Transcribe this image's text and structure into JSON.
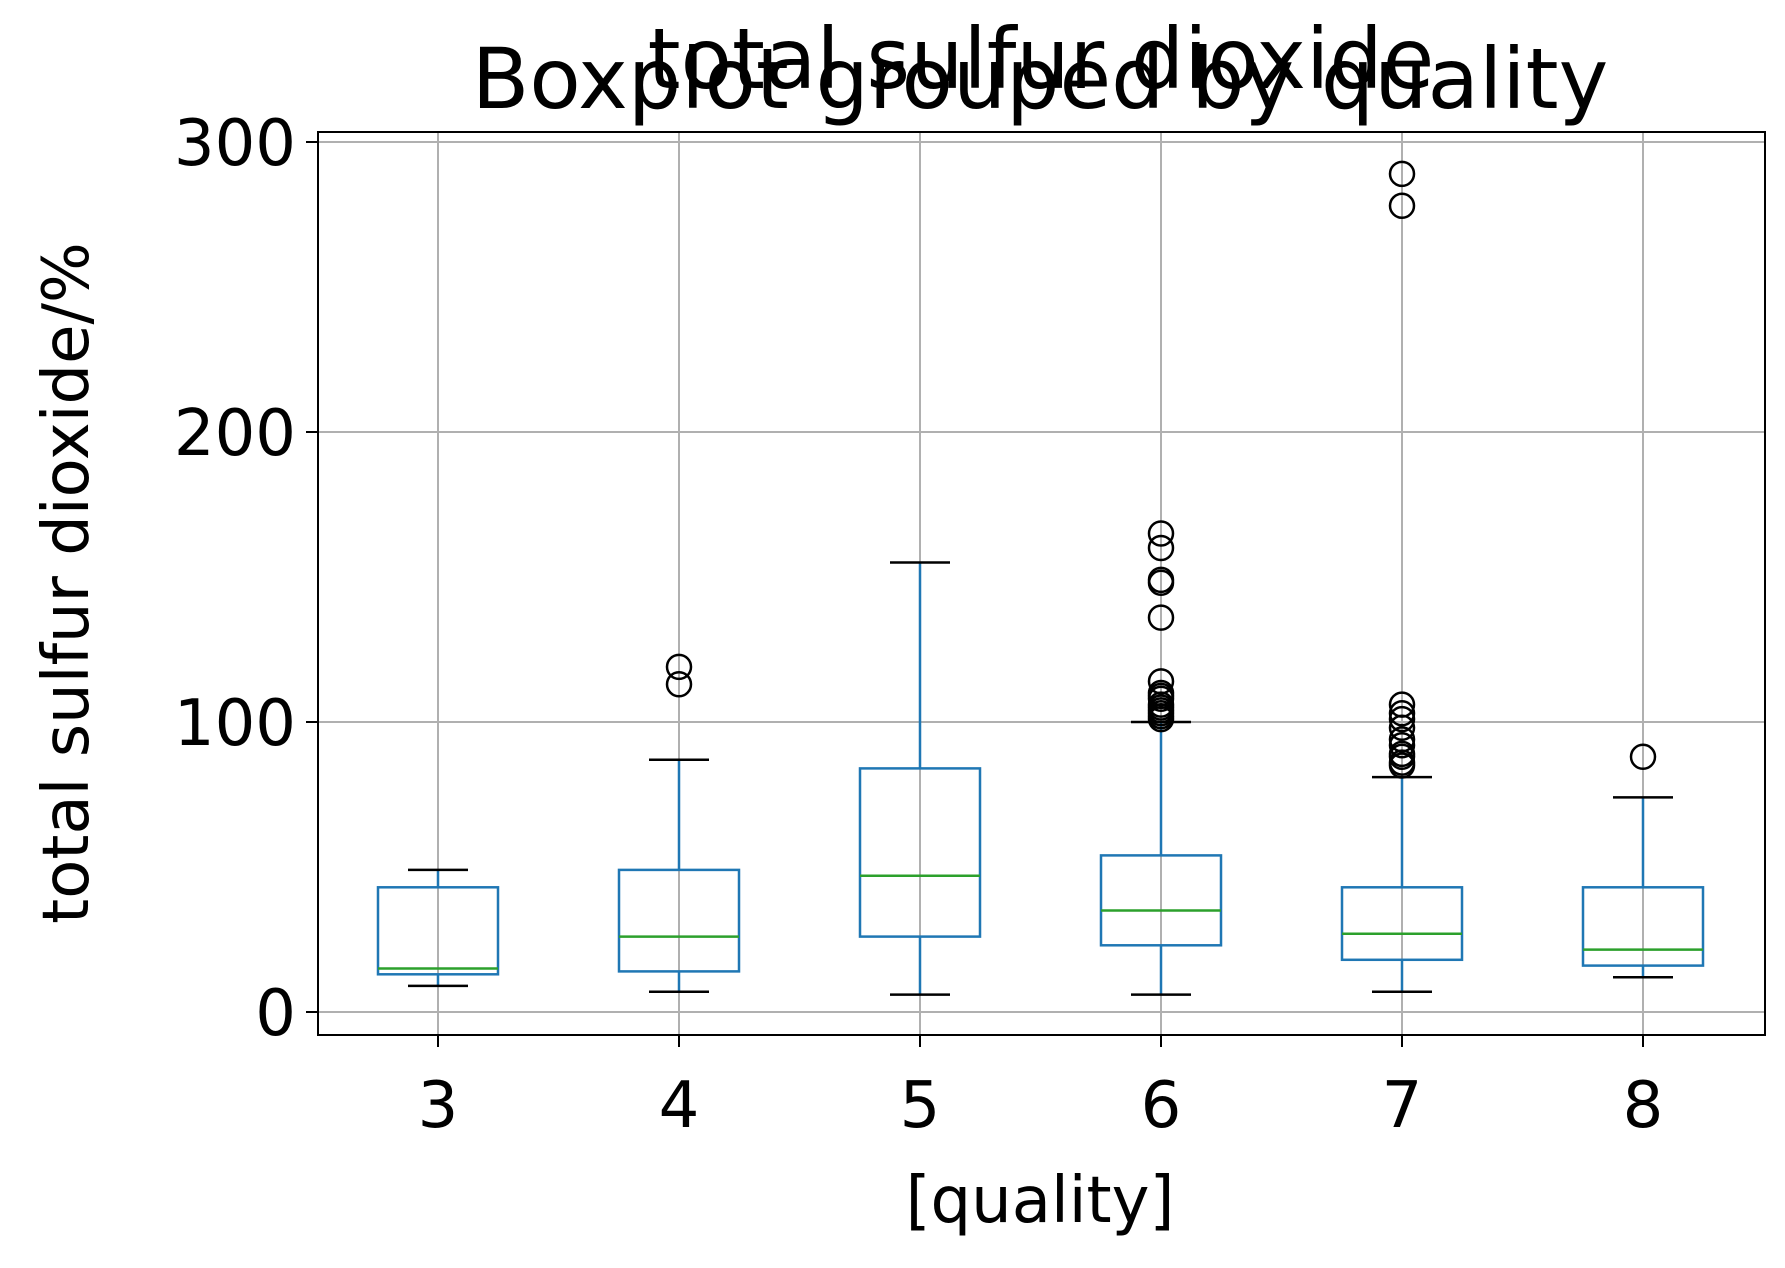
{
  "chart_data": {
    "type": "box",
    "suptitle": "Boxplot grouped by quality",
    "title": "total sulfur dioxide",
    "xlabel": "[quality]",
    "ylabel": "total sulfur dioxide/%",
    "categories": [
      "3",
      "4",
      "5",
      "6",
      "7",
      "8"
    ],
    "ylim": [
      -8,
      303
    ],
    "yticks": [
      0,
      100,
      200,
      300
    ],
    "ytick_labels": [
      "0",
      "100",
      "200",
      "300"
    ],
    "grid": true,
    "colors": {
      "box": "#1f77b4",
      "median": "#2ca02c",
      "whisker": "#1f77b4",
      "cap": "#000000",
      "flier": "#000000",
      "grid": "#b0b0b0",
      "axes": "#000000"
    },
    "boxes": [
      {
        "category": "3",
        "whislo": 9,
        "q1": 13,
        "median": 15,
        "q3": 43,
        "whishi": 49,
        "fliers": []
      },
      {
        "category": "4",
        "whislo": 7,
        "q1": 14,
        "median": 26,
        "q3": 49,
        "whishi": 87,
        "fliers": [
          113,
          119
        ]
      },
      {
        "category": "5",
        "whislo": 6,
        "q1": 26,
        "median": 47,
        "q3": 84,
        "whishi": 155,
        "fliers": []
      },
      {
        "category": "6",
        "whislo": 6,
        "q1": 23,
        "median": 35,
        "q3": 54,
        "whishi": 100,
        "fliers": [
          101,
          102,
          103,
          104,
          105,
          106,
          108,
          109,
          110,
          114,
          136,
          148,
          149,
          160,
          165
        ]
      },
      {
        "category": "7",
        "whislo": 7,
        "q1": 18,
        "median": 27,
        "q3": 43,
        "whishi": 81,
        "fliers": [
          85,
          86,
          88,
          89,
          92,
          94,
          98,
          101,
          103,
          106,
          278,
          289
        ]
      },
      {
        "category": "8",
        "whislo": 12,
        "q1": 16,
        "median": 21.5,
        "q3": 43,
        "whishi": 74,
        "fliers": [
          88
        ]
      }
    ]
  }
}
